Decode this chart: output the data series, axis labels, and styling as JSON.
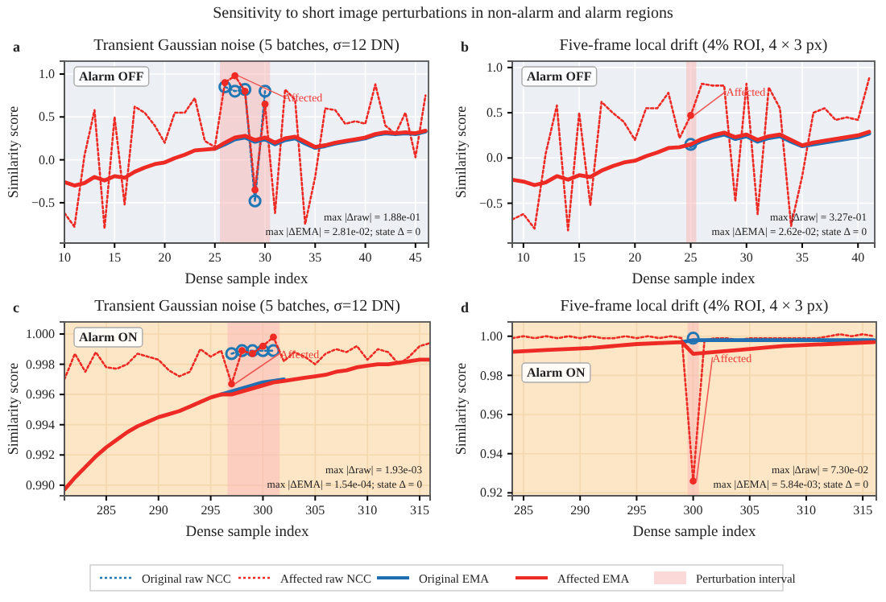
{
  "chart_data": [
    {
      "type": "line",
      "title": "Transient Gaussian noise (5 batches, σ=12 DN)",
      "xlabel": "Dense sample index",
      "ylabel": "Similarity  score",
      "annotations": [
        "Sensitivity to short image perturbations in non-alarm and alarm regions",
        "a",
        "Alarm  OFF",
        "max |Δraw| = 1.88e-01",
        "max |ΔEMA| = 2.81e-02; state Δ = 0",
        {
          "text": "Affected",
          "x": 27,
          "y": 0.98
        }
      ],
      "xlim": [
        10,
        46.3
      ],
      "ylim": [
        -0.97,
        1.15
      ],
      "xticks": [
        10,
        15,
        20,
        25,
        30,
        35,
        40,
        45
      ],
      "yticks": [
        {
          "value": -0.5,
          "label": "−0.5"
        },
        {
          "value": 0,
          "label": "0.0"
        },
        {
          "value": 0.5,
          "label": "0.5"
        },
        {
          "value": 1,
          "label": "1.0"
        }
      ],
      "grid": true,
      "bands": [
        {
          "axis": "x",
          "from": 25.5,
          "to": 30.5,
          "color": "#f9b9b9"
        }
      ],
      "series": [
        {
          "type": "line",
          "line_style": "dotted",
          "marker": "circle",
          "color": "#1f77b4",
          "x": [
            26,
            27,
            28,
            29,
            30
          ],
          "values": [
            0.85,
            0.8,
            0.82,
            -0.48,
            0.8
          ]
        },
        {
          "type": "line",
          "line_style": "dotted",
          "color": "#ee2a24",
          "x": [
            10,
            11,
            12,
            13,
            14,
            15,
            16,
            17,
            18,
            19,
            20,
            21,
            22,
            23,
            24,
            25,
            26,
            27,
            28,
            29,
            30,
            31,
            32,
            33,
            34,
            35,
            36,
            37,
            38,
            39,
            40,
            41,
            42,
            43,
            44,
            45,
            46
          ],
          "values": [
            -0.62,
            -0.78,
            0.05,
            0.58,
            -0.8,
            0.5,
            -0.52,
            0.62,
            0.55,
            0.4,
            0.2,
            0.55,
            0.55,
            0.72,
            0.22,
            0.15,
            0.9,
            0.98,
            0.8,
            -0.35,
            0.65,
            -0.62,
            0.82,
            0.7,
            -0.75,
            -0.2,
            0.6,
            0.58,
            0.42,
            0.45,
            0.42,
            0.88,
            0.4,
            0.3,
            0.55,
            0.03,
            0.75
          ]
        },
        {
          "type": "scatter",
          "color": "#ee2a24",
          "x": [
            26,
            27,
            28,
            29,
            30
          ],
          "values": [
            0.9,
            0.98,
            0.8,
            -0.35,
            0.65
          ]
        },
        {
          "type": "line",
          "line_style": "solid",
          "color": "#1f6fb2",
          "x": [
            25,
            26,
            27,
            28,
            29,
            30,
            31,
            32,
            33,
            34,
            35,
            36,
            37,
            38,
            39,
            40,
            41,
            42,
            43,
            44,
            45,
            46
          ],
          "values": [
            0.13,
            0.18,
            0.24,
            0.26,
            0.21,
            0.24,
            0.18,
            0.23,
            0.25,
            0.19,
            0.14,
            0.16,
            0.19,
            0.21,
            0.23,
            0.25,
            0.29,
            0.31,
            0.3,
            0.31,
            0.3,
            0.33
          ]
        },
        {
          "type": "line",
          "line_style": "solid",
          "color": "#ee2a24",
          "x": [
            10,
            11,
            12,
            13,
            14,
            15,
            16,
            17,
            18,
            19,
            20,
            21,
            22,
            23,
            24,
            25,
            26,
            27,
            28,
            29,
            30,
            31,
            32,
            33,
            34,
            35,
            36,
            37,
            38,
            39,
            40,
            41,
            42,
            43,
            44,
            45,
            46
          ],
          "values": [
            -0.26,
            -0.3,
            -0.27,
            -0.2,
            -0.24,
            -0.19,
            -0.21,
            -0.14,
            -0.09,
            -0.05,
            -0.03,
            0.02,
            0.06,
            0.11,
            0.12,
            0.13,
            0.2,
            0.26,
            0.28,
            0.23,
            0.26,
            0.2,
            0.25,
            0.27,
            0.21,
            0.15,
            0.17,
            0.2,
            0.22,
            0.24,
            0.26,
            0.3,
            0.32,
            0.31,
            0.32,
            0.31,
            0.34
          ]
        }
      ]
    },
    {
      "type": "line",
      "title": "Five-frame local drift (4% ROI, 4 × 3 px)",
      "xlabel": "Dense sample index",
      "ylabel": "Similarity  score",
      "annotations": [
        "b",
        "Alarm  OFF",
        "max |Δraw| = 3.27e-01",
        "max |ΔEMA| = 2.62e-02; state Δ = 0",
        {
          "text": "Affected",
          "x": 25,
          "y": 0.47
        }
      ],
      "xlim": [
        9,
        41.5
      ],
      "ylim": [
        -0.94,
        1.07
      ],
      "xticks": [
        10,
        15,
        20,
        25,
        30,
        35,
        40
      ],
      "yticks": [
        {
          "value": -0.5,
          "label": "−0.5"
        },
        {
          "value": 0,
          "label": "0.0"
        },
        {
          "value": 0.5,
          "label": "0.5"
        },
        {
          "value": 1,
          "label": "1.0"
        }
      ],
      "grid": true,
      "bands": [
        {
          "axis": "x",
          "from": 24.6,
          "to": 25.5,
          "color": "#f9b9b9"
        }
      ],
      "series": [
        {
          "type": "line",
          "line_style": "dotted",
          "marker": "circle",
          "color": "#1f77b4",
          "x": [
            25
          ],
          "values": [
            0.15
          ]
        },
        {
          "type": "line",
          "line_style": "dotted",
          "color": "#ee2a24",
          "x": [
            9,
            10,
            11,
            12,
            13,
            14,
            15,
            16,
            17,
            18,
            19,
            20,
            21,
            22,
            23,
            24,
            25,
            26,
            27,
            28,
            29,
            30,
            31,
            32,
            33,
            34,
            35,
            36,
            37,
            38,
            39,
            40,
            41
          ],
          "values": [
            -0.68,
            -0.62,
            -0.78,
            0.05,
            0.58,
            -0.8,
            0.5,
            -0.52,
            0.62,
            0.5,
            0.4,
            0.2,
            0.55,
            0.55,
            0.72,
            0.22,
            0.47,
            0.82,
            0.8,
            0.8,
            -0.48,
            0.82,
            -0.62,
            0.78,
            0.55,
            -0.75,
            -0.2,
            0.5,
            0.55,
            0.42,
            0.45,
            0.42,
            0.88
          ]
        },
        {
          "type": "scatter",
          "color": "#ee2a24",
          "x": [
            25
          ],
          "values": [
            0.47
          ]
        },
        {
          "type": "line",
          "line_style": "solid",
          "color": "#1f6fb2",
          "x": [
            25,
            26,
            27,
            28,
            29,
            30,
            31,
            32,
            33,
            34,
            35,
            36,
            37,
            38,
            39,
            40,
            41
          ],
          "values": [
            0.13,
            0.19,
            0.23,
            0.26,
            0.21,
            0.24,
            0.18,
            0.22,
            0.24,
            0.18,
            0.13,
            0.15,
            0.17,
            0.19,
            0.21,
            0.23,
            0.27
          ]
        },
        {
          "type": "line",
          "line_style": "solid",
          "color": "#ee2a24",
          "x": [
            9,
            10,
            11,
            12,
            13,
            14,
            15,
            16,
            17,
            18,
            19,
            20,
            21,
            22,
            23,
            24,
            25,
            26,
            27,
            28,
            29,
            30,
            31,
            32,
            33,
            34,
            35,
            36,
            37,
            38,
            39,
            40,
            41
          ],
          "values": [
            -0.24,
            -0.26,
            -0.3,
            -0.27,
            -0.2,
            -0.24,
            -0.19,
            -0.21,
            -0.14,
            -0.09,
            -0.05,
            -0.03,
            0.02,
            0.06,
            0.11,
            0.12,
            0.15,
            0.21,
            0.25,
            0.28,
            0.23,
            0.26,
            0.2,
            0.24,
            0.26,
            0.2,
            0.14,
            0.17,
            0.19,
            0.21,
            0.23,
            0.25,
            0.29
          ]
        }
      ]
    },
    {
      "type": "line",
      "title": "Transient Gaussian noise (5 batches, σ=12 DN)",
      "xlabel": "Dense sample index",
      "ylabel": "Similarity  score",
      "annotations": [
        "c",
        "Alarm  ON",
        "max |Δraw| = 1.93e-03",
        "max |ΔEMA| = 1.54e-04; state Δ = 0",
        {
          "text": "Affected",
          "x": 297,
          "y": 0.9967
        }
      ],
      "xlim": [
        281,
        316
      ],
      "ylim": [
        0.9893,
        1.0008
      ],
      "xticks": [
        285,
        290,
        295,
        300,
        305,
        310,
        315
      ],
      "yticks": [
        {
          "value": 0.99,
          "label": "0.990"
        },
        {
          "value": 0.992,
          "label": "0.992"
        },
        {
          "value": 0.994,
          "label": "0.994"
        },
        {
          "value": 0.996,
          "label": "0.996"
        },
        {
          "value": 0.998,
          "label": "0.998"
        },
        {
          "value": 1,
          "label": "1.000"
        }
      ],
      "grid": true,
      "legend": "bottom",
      "bands": [
        {
          "axis": "x",
          "from": 296.6,
          "to": 301.6,
          "color": "#f9b9b9",
          "label": "Perturbation interval"
        }
      ],
      "series": [
        {
          "name": "Original raw NCC",
          "type": "line",
          "line_style": "dotted",
          "marker": "circle",
          "color": "#1f77b4",
          "x": [
            297,
            298,
            299,
            300,
            301
          ],
          "values": [
            0.9987,
            0.9989,
            0.9989,
            0.9989,
            0.9989
          ]
        },
        {
          "name": "Affected raw NCC",
          "type": "line",
          "line_style": "dotted",
          "color": "#ee2a24",
          "x": [
            281,
            282,
            283,
            284,
            285,
            286,
            287,
            288,
            289,
            290,
            291,
            292,
            293,
            294,
            295,
            296,
            297,
            298,
            299,
            300,
            301,
            302,
            303,
            304,
            305,
            306,
            307,
            308,
            309,
            310,
            311,
            312,
            313,
            314,
            315,
            316
          ],
          "values": [
            0.997,
            0.9987,
            0.9975,
            0.9988,
            0.9978,
            0.9977,
            0.998,
            0.9987,
            0.9985,
            0.9983,
            0.9976,
            0.9972,
            0.9975,
            0.999,
            0.9985,
            0.9989,
            0.9967,
            0.9989,
            0.9987,
            0.9992,
            0.9998,
            0.9982,
            0.9988,
            0.9985,
            0.998,
            0.9987,
            0.999,
            0.9988,
            0.9992,
            0.9983,
            0.999,
            0.9988,
            0.998,
            0.9985,
            0.9992,
            0.9994
          ]
        },
        {
          "type": "scatter",
          "color": "#ee2a24",
          "x": [
            297,
            298,
            299,
            300,
            301
          ],
          "values": [
            0.9967,
            0.9989,
            0.9987,
            0.9992,
            0.9998
          ]
        },
        {
          "name": "Original EMA",
          "type": "line",
          "line_style": "solid",
          "color": "#1f6fb2",
          "x": [
            296,
            297,
            298,
            299,
            300,
            301,
            302
          ],
          "values": [
            0.996,
            0.9962,
            0.9964,
            0.9966,
            0.9968,
            0.9969,
            0.997
          ]
        },
        {
          "name": "Affected EMA",
          "type": "line",
          "line_style": "solid",
          "color": "#ee2a24",
          "x": [
            281,
            282,
            283,
            284,
            285,
            286,
            287,
            288,
            289,
            290,
            291,
            292,
            293,
            294,
            295,
            296,
            297,
            298,
            299,
            300,
            301,
            302,
            303,
            304,
            305,
            306,
            307,
            308,
            309,
            310,
            311,
            312,
            313,
            314,
            315,
            316
          ],
          "values": [
            0.9897,
            0.9905,
            0.9912,
            0.9919,
            0.9925,
            0.993,
            0.9935,
            0.9939,
            0.9942,
            0.9945,
            0.9947,
            0.9949,
            0.9952,
            0.9955,
            0.9958,
            0.996,
            0.996,
            0.9962,
            0.9964,
            0.9966,
            0.9968,
            0.9969,
            0.997,
            0.9971,
            0.9972,
            0.9973,
            0.9975,
            0.9976,
            0.9978,
            0.9979,
            0.998,
            0.998,
            0.9981,
            0.9982,
            0.9983,
            0.9983
          ]
        }
      ]
    },
    {
      "type": "line",
      "title": "Five-frame local drift (4% ROI, 4 × 3 px)",
      "xlabel": "Dense sample index",
      "ylabel": "Similarity  score",
      "annotations": [
        "d",
        "Alarm  ON",
        "max |Δraw| = 7.30e-02",
        "max |ΔEMA| = 5.84e-03; state Δ = 0",
        {
          "text": "Affected",
          "x": 300,
          "y": 0.926
        }
      ],
      "xlim": [
        284,
        316.2
      ],
      "ylim": [
        0.9185,
        1.0073
      ],
      "xticks": [
        285,
        290,
        295,
        300,
        305,
        310,
        315
      ],
      "yticks": [
        {
          "value": 0.92,
          "label": "0.92"
        },
        {
          "value": 0.94,
          "label": "0.94"
        },
        {
          "value": 0.96,
          "label": "0.96"
        },
        {
          "value": 0.98,
          "label": "0.98"
        },
        {
          "value": 1,
          "label": "1.00"
        }
      ],
      "grid": true,
      "bands": [
        {
          "axis": "x",
          "from": 299.5,
          "to": 300.5,
          "color": "#f9b9b9"
        }
      ],
      "series": [
        {
          "type": "line",
          "line_style": "dotted",
          "marker": "circle",
          "color": "#1f77b4",
          "x": [
            300
          ],
          "values": [
            0.999
          ]
        },
        {
          "type": "line",
          "line_style": "dotted",
          "color": "#ee2a24",
          "x": [
            284,
            285,
            286,
            287,
            288,
            289,
            290,
            291,
            292,
            293,
            294,
            295,
            296,
            297,
            298,
            299,
            300,
            301,
            302,
            303,
            304,
            305,
            306,
            307,
            308,
            309,
            310,
            311,
            312,
            313,
            314,
            315,
            316
          ],
          "values": [
            0.999,
            1.0,
            0.999,
            1.0,
            0.999,
            1.0,
            0.999,
            1.0,
            0.999,
            0.999,
            1.0,
            0.999,
            1.0,
            0.999,
            1.0,
            0.999,
            0.926,
            0.998,
            0.999,
            0.999,
            0.998,
            0.999,
            0.999,
            0.999,
            0.999,
            0.999,
            0.999,
            0.999,
            1.0,
            1.001,
            1.0,
            1.001,
            1.0
          ]
        },
        {
          "type": "scatter",
          "color": "#ee2a24",
          "x": [
            300
          ],
          "values": [
            0.926
          ]
        },
        {
          "type": "line",
          "line_style": "solid",
          "color": "#1f6fb2",
          "x": [
            299,
            300,
            304,
            308,
            312,
            316
          ],
          "values": [
            0.997,
            0.998,
            0.998,
            0.998,
            0.998,
            0.998
          ]
        },
        {
          "type": "line",
          "line_style": "solid",
          "color": "#ee2a24",
          "x": [
            284,
            287,
            291,
            295,
            299,
            300,
            304,
            308,
            312,
            316
          ],
          "values": [
            0.992,
            0.993,
            0.994,
            0.996,
            0.997,
            0.991,
            0.993,
            0.995,
            0.996,
            0.997
          ]
        }
      ]
    }
  ]
}
